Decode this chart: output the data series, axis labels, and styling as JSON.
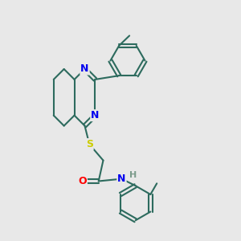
{
  "bg_color": "#e8e8e8",
  "bond_color": "#2d6b5e",
  "dbo": 0.008,
  "atom_colors": {
    "N": "#0000ee",
    "S": "#cccc00",
    "O": "#ff0000",
    "H": "#7a9a8a",
    "C": "#2d6b5e"
  },
  "font_size": 9,
  "lw": 1.5
}
